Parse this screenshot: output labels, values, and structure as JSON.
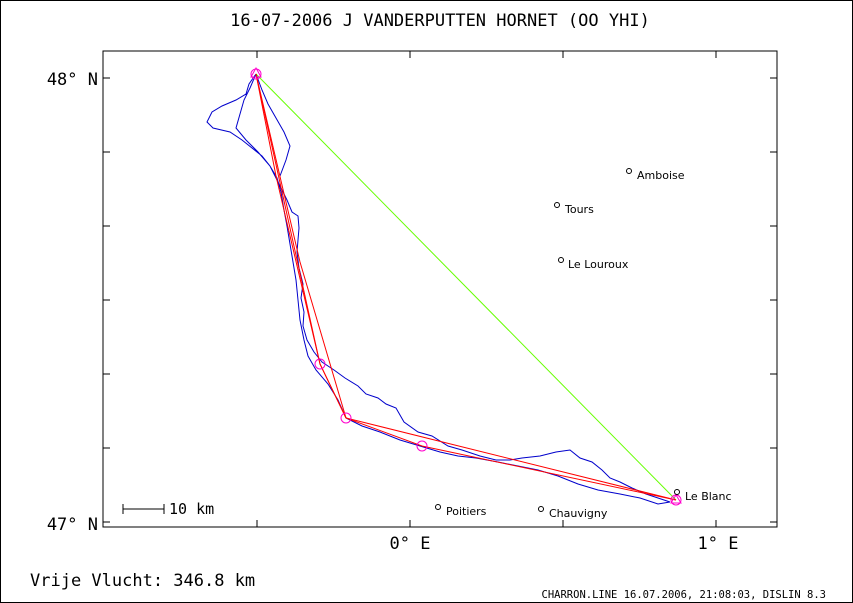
{
  "title": "16-07-2006   J VANDERPUTTEN   HORNET (OO YHI)",
  "footer_left": "Vrije Vlucht:  346.8 km",
  "footer_right": "CHARRON.LINE 16.07.2006, 21:08:03, DISLIN 8.3",
  "scale_bar_label": "10 km",
  "axis": {
    "lat_labels": [
      "48° N",
      "47° N"
    ],
    "lon_labels": [
      "0° E",
      "1° E"
    ]
  },
  "towns": [
    {
      "name": "Amboise",
      "lon": 0.71,
      "lat": 47.79
    },
    {
      "name": "Tours",
      "lon": 0.48,
      "lat": 47.72
    },
    {
      "name": "Le Louroux",
      "lon": 0.49,
      "lat": 47.59
    },
    {
      "name": "Le Blanc",
      "lon": 0.87,
      "lat": 47.07
    },
    {
      "name": "Poitiers",
      "lon": 0.09,
      "lat": 47.04
    },
    {
      "name": "Chauvigny",
      "lon": 0.43,
      "lat": 47.03
    }
  ],
  "colors": {
    "track": "#0000cc",
    "route": "#ff0000",
    "straight": "#66ff00",
    "turnpoint": "#ff00cc",
    "axis": "#000000"
  },
  "turnpoints": [
    {
      "lon": -0.5,
      "lat": 48.0
    },
    {
      "lon": -0.3,
      "lat": 47.36
    },
    {
      "lon": -0.21,
      "lat": 47.23
    },
    {
      "lon": 0.04,
      "lat": 47.18
    },
    {
      "lon": 0.87,
      "lat": 47.05
    }
  ]
}
